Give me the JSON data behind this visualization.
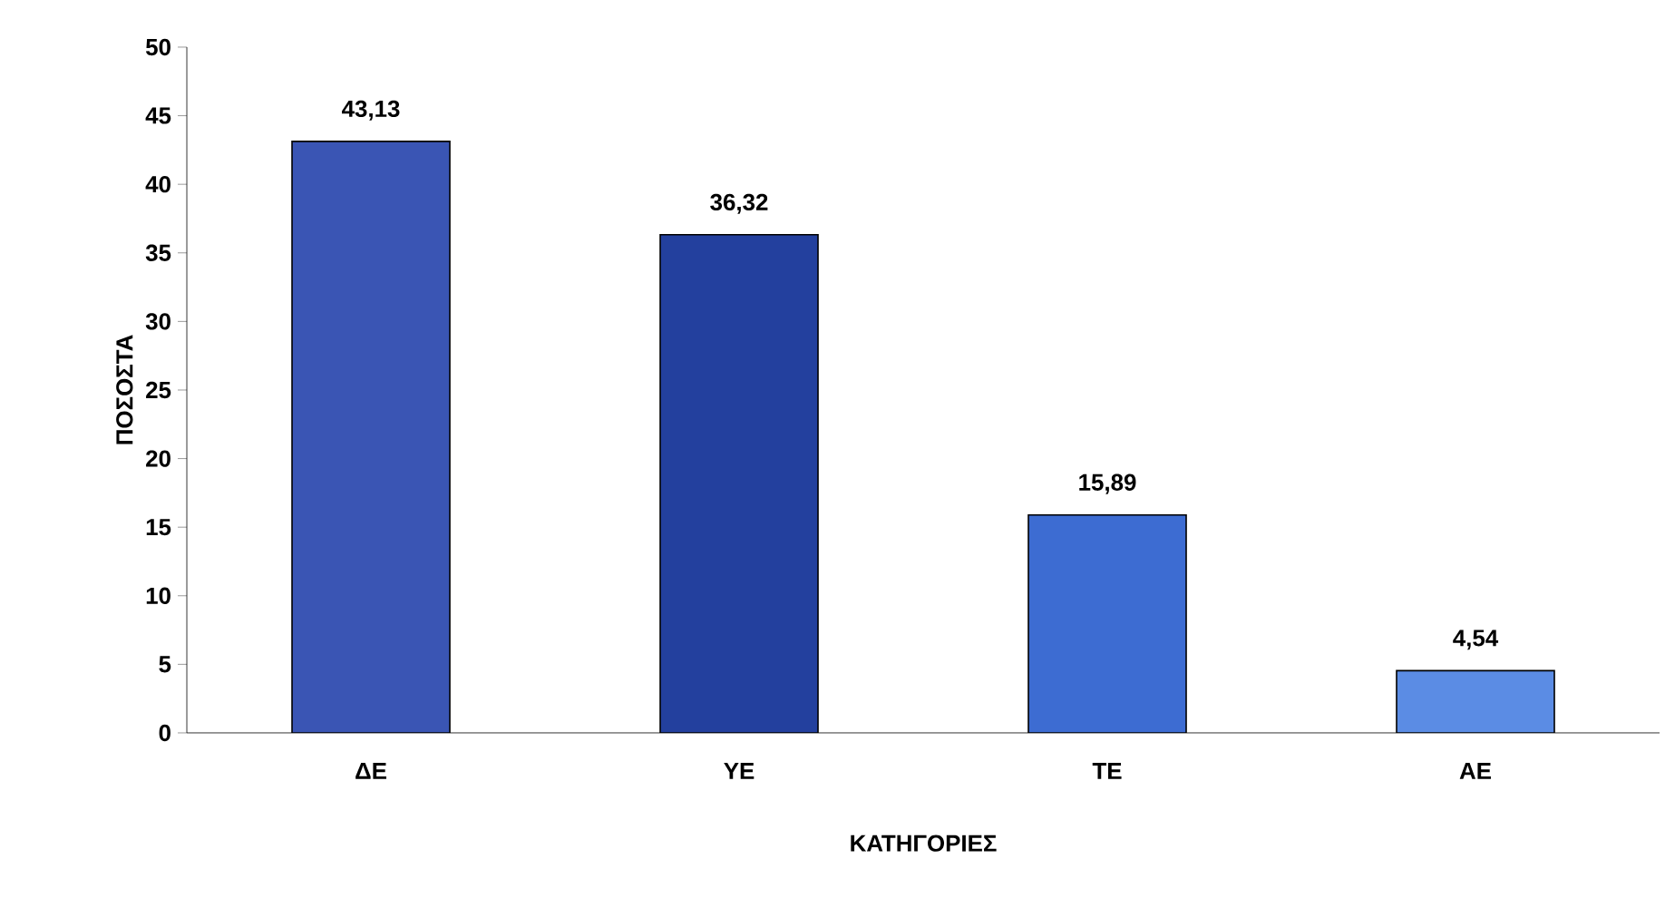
{
  "chart_data": {
    "type": "bar",
    "xlabel": "ΚΑΤΗΓΟΡΙΕΣ",
    "ylabel": "ΠΟΣΟΣΤΑ",
    "categories": [
      "ΔΕ",
      "ΥΕ",
      "ΤΕ",
      "ΑΕ"
    ],
    "values": [
      43.13,
      36.32,
      15.89,
      4.54
    ],
    "colors": [
      "#3a55b4",
      "#23409e",
      "#3d6cd2",
      "#5b8ce4"
    ],
    "value_labels": [
      "43,13",
      "36,32",
      "15,89",
      "4,54"
    ],
    "ylim": [
      0,
      50
    ],
    "yticks": [
      0,
      5,
      10,
      15,
      20,
      25,
      30,
      35,
      40,
      45,
      50
    ],
    "grid": false
  }
}
